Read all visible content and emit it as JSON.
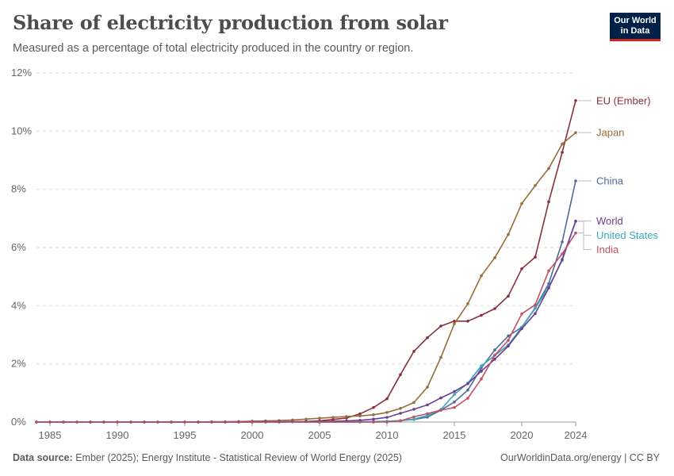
{
  "header": {
    "title": "Share of electricity production from solar",
    "subtitle": "Measured as a percentage of total electricity produced in the country or region.",
    "logo_line1": "Our World",
    "logo_line2": "in Data"
  },
  "footer": {
    "source_label": "Data source:",
    "source_text": "Ember (2025); Energy Institute - Statistical Review of World Energy (2025)",
    "credit": "OurWorldinData.org/energy | CC BY"
  },
  "chart_data": {
    "type": "line",
    "title": "Share of electricity production from solar",
    "subtitle": "Measured as a percentage of total electricity produced in the country or region.",
    "xlim": [
      1984,
      2024
    ],
    "ylim": [
      0,
      12
    ],
    "x_ticks": [
      1985,
      1990,
      1995,
      2000,
      2005,
      2010,
      2015,
      2020,
      2024
    ],
    "y_ticks": [
      {
        "value": 0,
        "label": "0%"
      },
      {
        "value": 2,
        "label": "2%"
      },
      {
        "value": 4,
        "label": "4%"
      },
      {
        "value": 6,
        "label": "6%"
      },
      {
        "value": 8,
        "label": "8%"
      },
      {
        "value": 10,
        "label": "10%"
      },
      {
        "value": 12,
        "label": "12%"
      }
    ],
    "grid": "horizontal",
    "legend": "right, labels at line ends",
    "series": [
      {
        "name": "EU (Ember)",
        "color": "#883039",
        "x": [
          1990,
          1995,
          2000,
          2001,
          2002,
          2003,
          2004,
          2005,
          2006,
          2007,
          2008,
          2009,
          2010,
          2011,
          2012,
          2013,
          2014,
          2015,
          2016,
          2017,
          2018,
          2019,
          2020,
          2021,
          2022,
          2023,
          2024
        ],
        "y": [
          0,
          0,
          0,
          0,
          0,
          0.01,
          0.02,
          0.04,
          0.09,
          0.14,
          0.28,
          0.5,
          0.8,
          1.63,
          2.43,
          2.9,
          3.3,
          3.47,
          3.47,
          3.67,
          3.9,
          4.33,
          5.27,
          5.67,
          7.57,
          9.27,
          11.05
        ]
      },
      {
        "name": "Japan",
        "color": "#996d39",
        "x": [
          1984,
          1985,
          1986,
          1987,
          1988,
          1989,
          1990,
          1991,
          1992,
          1993,
          1994,
          1995,
          1996,
          1997,
          1998,
          1999,
          2000,
          2001,
          2002,
          2003,
          2004,
          2005,
          2006,
          2007,
          2008,
          2009,
          2010,
          2011,
          2012,
          2013,
          2014,
          2015,
          2016,
          2017,
          2018,
          2019,
          2020,
          2021,
          2022,
          2023,
          2024
        ],
        "y": [
          0,
          0,
          0,
          0,
          0,
          0,
          0,
          0,
          0,
          0,
          0,
          0,
          0,
          0.01,
          0.01,
          0.02,
          0.03,
          0.04,
          0.05,
          0.07,
          0.1,
          0.13,
          0.16,
          0.19,
          0.21,
          0.25,
          0.33,
          0.47,
          0.67,
          1.2,
          2.22,
          3.38,
          4.07,
          5.03,
          5.65,
          6.45,
          7.51,
          8.13,
          8.72,
          9.56,
          9.95
        ]
      },
      {
        "name": "China",
        "color": "#4c6a9c",
        "x": [
          1984,
          1985,
          1990,
          1995,
          2000,
          2005,
          2008,
          2009,
          2010,
          2011,
          2012,
          2013,
          2014,
          2015,
          2016,
          2017,
          2018,
          2019,
          2020,
          2021,
          2022,
          2023,
          2024
        ],
        "y": [
          0,
          0,
          0,
          0,
          0,
          0,
          0,
          0,
          0.01,
          0.05,
          0.09,
          0.17,
          0.41,
          0.69,
          1.1,
          1.86,
          2.48,
          2.96,
          3.26,
          3.93,
          4.76,
          6.19,
          8.29
        ]
      },
      {
        "name": "United States",
        "color": "#38aaba",
        "x": [
          1984,
          1985,
          1990,
          1995,
          2000,
          2005,
          2008,
          2009,
          2010,
          2011,
          2012,
          2013,
          2014,
          2015,
          2016,
          2017,
          2018,
          2019,
          2020,
          2021,
          2022,
          2023,
          2024
        ],
        "y": [
          0,
          0,
          0,
          0,
          0,
          0,
          0.01,
          0.02,
          0.03,
          0.05,
          0.1,
          0.23,
          0.43,
          0.95,
          1.34,
          1.93,
          2.29,
          2.65,
          3.26,
          3.91,
          4.64,
          5.56,
          6.9
        ]
      },
      {
        "name": "World",
        "color": "#6d3e91",
        "x": [
          1984,
          1985,
          1986,
          1987,
          1988,
          1989,
          1990,
          1991,
          1992,
          1993,
          1994,
          1995,
          1996,
          1997,
          1998,
          1999,
          2000,
          2001,
          2002,
          2003,
          2004,
          2005,
          2006,
          2007,
          2008,
          2009,
          2010,
          2011,
          2012,
          2013,
          2014,
          2015,
          2016,
          2017,
          2018,
          2019,
          2020,
          2021,
          2022,
          2023,
          2024
        ],
        "y": [
          0,
          0,
          0,
          0,
          0,
          0,
          0,
          0,
          0,
          0,
          0,
          0,
          0,
          0,
          0,
          0,
          0.01,
          0.01,
          0.01,
          0.01,
          0.02,
          0.02,
          0.03,
          0.04,
          0.06,
          0.1,
          0.16,
          0.3,
          0.44,
          0.59,
          0.83,
          1.05,
          1.32,
          1.75,
          2.16,
          2.61,
          3.21,
          3.73,
          4.61,
          5.59,
          6.91
        ]
      },
      {
        "name": "India",
        "color": "#c15065",
        "x": [
          1984,
          1985,
          1990,
          1995,
          2000,
          2005,
          2009,
          2010,
          2011,
          2012,
          2013,
          2014,
          2015,
          2016,
          2017,
          2018,
          2019,
          2020,
          2021,
          2022,
          2023,
          2024
        ],
        "y": [
          0,
          0,
          0,
          0,
          0,
          0,
          0,
          0,
          0.04,
          0.18,
          0.29,
          0.41,
          0.5,
          0.82,
          1.48,
          2.3,
          2.81,
          3.72,
          4.03,
          5.2,
          5.78,
          6.5
        ]
      }
    ]
  }
}
